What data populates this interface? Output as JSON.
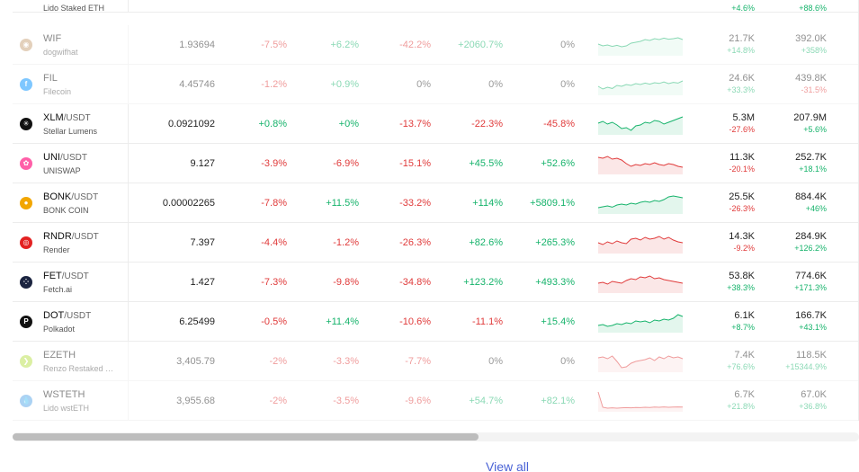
{
  "partial_top_row": {
    "full_name": "Lido Staked ETH",
    "vol_change": "+4.6%",
    "cap_change": "+88.6%"
  },
  "rows": [
    {
      "symbol": "WIF",
      "quote": "",
      "name": "dogwifhat",
      "price": "1.93694",
      "ch": [
        "-7.5%",
        "+6.2%",
        "-42.2%",
        "+2060.7%",
        "0%"
      ],
      "vol": "21.7K",
      "vol_ch": "+14.8%",
      "cap": "392.0K",
      "cap_ch": "+358%",
      "dim": true,
      "icon_color": "#c9a27a",
      "icon_glyph": "◉",
      "spark_color": "#16b36b"
    },
    {
      "symbol": "FIL",
      "quote": "",
      "name": "Filecoin",
      "price": "4.45746",
      "ch": [
        "-1.2%",
        "+0.9%",
        "0%",
        "0%",
        "0%"
      ],
      "vol": "24.6K",
      "vol_ch": "+33.3%",
      "cap": "439.8K",
      "cap_ch": "-31.5%",
      "dim": true,
      "icon_color": "#0090ff",
      "icon_glyph": "f",
      "spark_color": "#16b36b"
    },
    {
      "symbol": "XLM",
      "quote": "/USDT",
      "name": "Stellar Lumens",
      "price": "0.0921092",
      "ch": [
        "+0.8%",
        "+0%",
        "-13.7%",
        "-22.3%",
        "-45.8%"
      ],
      "vol": "5.3M",
      "vol_ch": "-27.6%",
      "cap": "207.9M",
      "cap_ch": "+5.6%",
      "dim": false,
      "icon_color": "#111111",
      "icon_glyph": "✳",
      "spark_color": "#16b36b"
    },
    {
      "symbol": "UNI",
      "quote": "/USDT",
      "name": "UNISWAP",
      "price": "9.127",
      "ch": [
        "-3.9%",
        "-6.9%",
        "-15.1%",
        "+45.5%",
        "+52.6%"
      ],
      "vol": "11.3K",
      "vol_ch": "-20.1%",
      "cap": "252.7K",
      "cap_ch": "+18.1%",
      "dim": false,
      "icon_color": "#ff5fa8",
      "icon_glyph": "✿",
      "spark_color": "#e03a3a"
    },
    {
      "symbol": "BONK",
      "quote": "/USDT",
      "name": "BONK COIN",
      "price": "0.00002265",
      "ch": [
        "-7.8%",
        "+11.5%",
        "-33.2%",
        "+114%",
        "+5809.1%"
      ],
      "vol": "25.5K",
      "vol_ch": "-26.3%",
      "cap": "884.4K",
      "cap_ch": "+46%",
      "dim": false,
      "icon_color": "#f2a600",
      "icon_glyph": "●",
      "spark_color": "#16b36b"
    },
    {
      "symbol": "RNDR",
      "quote": "/USDT",
      "name": "Render",
      "price": "7.397",
      "ch": [
        "-4.4%",
        "-1.2%",
        "-26.3%",
        "+82.6%",
        "+265.3%"
      ],
      "vol": "14.3K",
      "vol_ch": "-9.2%",
      "cap": "284.9K",
      "cap_ch": "+126.2%",
      "dim": false,
      "icon_color": "#e32222",
      "icon_glyph": "◎",
      "spark_color": "#e03a3a"
    },
    {
      "symbol": "FET",
      "quote": "/USDT",
      "name": "Fetch.ai",
      "price": "1.427",
      "ch": [
        "-7.3%",
        "-9.8%",
        "-34.8%",
        "+123.2%",
        "+493.3%"
      ],
      "vol": "53.8K",
      "vol_ch": "+38.3%",
      "cap": "774.6K",
      "cap_ch": "+171.3%",
      "dim": false,
      "icon_color": "#1b2440",
      "icon_glyph": "⁘",
      "spark_color": "#e03a3a"
    },
    {
      "symbol": "DOT",
      "quote": "/USDT",
      "name": "Polkadot",
      "price": "6.25499",
      "ch": [
        "-0.5%",
        "+11.4%",
        "-10.6%",
        "-11.1%",
        "+15.4%"
      ],
      "vol": "6.1K",
      "vol_ch": "+8.7%",
      "cap": "166.7K",
      "cap_ch": "+43.1%",
      "dim": false,
      "icon_color": "#111111",
      "icon_glyph": "P",
      "spark_color": "#16b36b"
    },
    {
      "symbol": "EZETH",
      "quote": "",
      "name": "Renzo Restaked E...",
      "price": "3,405.79",
      "ch": [
        "-2%",
        "-3.3%",
        "-7.7%",
        "0%",
        "0%"
      ],
      "vol": "7.4K",
      "vol_ch": "+76.6%",
      "cap": "118.5K",
      "cap_ch": "+15344.9%",
      "dim": true,
      "icon_color": "#b8e04a",
      "icon_glyph": "❯",
      "spark_color": "#e03a3a"
    },
    {
      "symbol": "WSTETH",
      "quote": "",
      "name": "Lido wstETH",
      "price": "3,955.68",
      "ch": [
        "-2%",
        "-3.5%",
        "-9.6%",
        "+54.7%",
        "+82.1%"
      ],
      "vol": "6.7K",
      "vol_ch": "+21.8%",
      "cap": "67.0K",
      "cap_ch": "+36.8%",
      "dim": true,
      "icon_color": "#5aa7e8",
      "icon_glyph": "💧",
      "spark_color": "#e03a3a"
    }
  ],
  "sparklines": [
    [
      0.45,
      0.55,
      0.5,
      0.58,
      0.52,
      0.6,
      0.55,
      0.4,
      0.35,
      0.3,
      0.2,
      0.25,
      0.15,
      0.2,
      0.12,
      0.18,
      0.15,
      0.1,
      0.2
    ],
    [
      0.6,
      0.75,
      0.65,
      0.72,
      0.55,
      0.6,
      0.5,
      0.55,
      0.45,
      0.5,
      0.42,
      0.48,
      0.4,
      0.44,
      0.36,
      0.45,
      0.38,
      0.42,
      0.3
    ],
    [
      0.45,
      0.35,
      0.5,
      0.4,
      0.55,
      0.75,
      0.7,
      0.85,
      0.6,
      0.55,
      0.4,
      0.45,
      0.3,
      0.35,
      0.5,
      0.4,
      0.3,
      0.2,
      0.1
    ],
    [
      0.15,
      0.2,
      0.1,
      0.25,
      0.2,
      0.3,
      0.5,
      0.65,
      0.55,
      0.6,
      0.5,
      0.55,
      0.45,
      0.55,
      0.6,
      0.5,
      0.55,
      0.65,
      0.7
    ],
    [
      0.75,
      0.7,
      0.65,
      0.72,
      0.6,
      0.55,
      0.6,
      0.5,
      0.55,
      0.45,
      0.4,
      0.45,
      0.35,
      0.4,
      0.3,
      0.15,
      0.1,
      0.15,
      0.2
    ],
    [
      0.5,
      0.6,
      0.45,
      0.55,
      0.4,
      0.5,
      0.55,
      0.3,
      0.25,
      0.35,
      0.2,
      0.3,
      0.25,
      0.15,
      0.3,
      0.2,
      0.35,
      0.45,
      0.5
    ],
    [
      0.55,
      0.5,
      0.6,
      0.45,
      0.5,
      0.55,
      0.4,
      0.3,
      0.35,
      0.2,
      0.25,
      0.15,
      0.3,
      0.25,
      0.35,
      0.4,
      0.45,
      0.5,
      0.55
    ],
    [
      0.7,
      0.65,
      0.75,
      0.7,
      0.6,
      0.65,
      0.55,
      0.6,
      0.45,
      0.5,
      0.45,
      0.55,
      0.4,
      0.45,
      0.35,
      0.4,
      0.3,
      0.1,
      0.2
    ],
    [
      0.3,
      0.25,
      0.35,
      0.2,
      0.5,
      0.85,
      0.8,
      0.6,
      0.5,
      0.45,
      0.4,
      0.3,
      0.45,
      0.25,
      0.35,
      0.2,
      0.3,
      0.25,
      0.35
    ],
    [
      0.0,
      0.85,
      0.9,
      0.88,
      0.9,
      0.88,
      0.87,
      0.88,
      0.86,
      0.87,
      0.85,
      0.86,
      0.84,
      0.85,
      0.83,
      0.85,
      0.84,
      0.83,
      0.84
    ]
  ],
  "view_all_label": "View all"
}
